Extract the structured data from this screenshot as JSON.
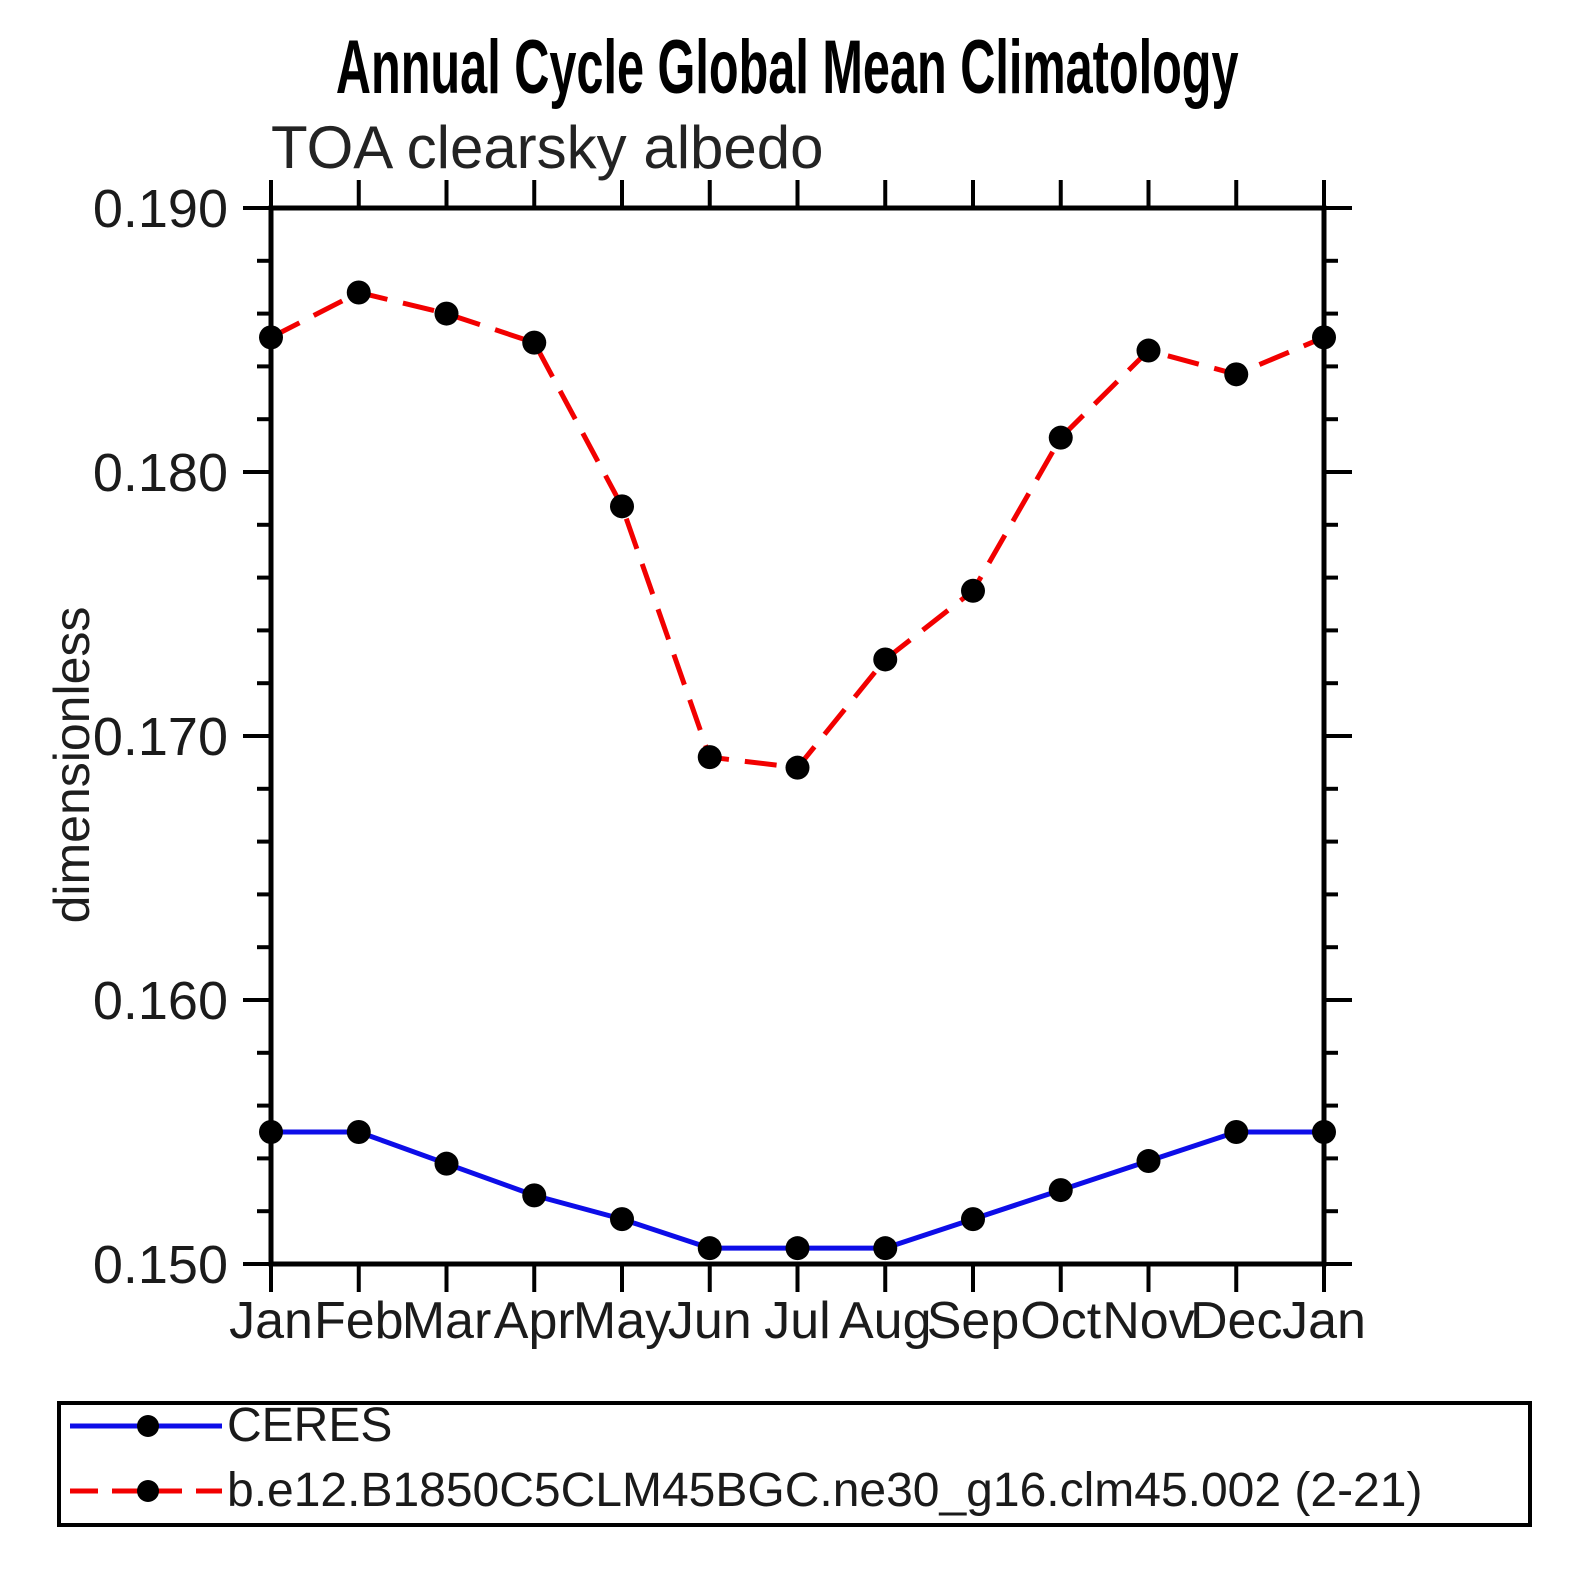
{
  "title": "Annual Cycle Global Mean Climatology",
  "subtitle": "TOA clearsky albedo",
  "y_axis_label": "dimensionless",
  "colors": {
    "ceres_line": "#0d0de8",
    "model_line": "#f20000",
    "marker": "#000000",
    "axis": "#000000",
    "background": "#ffffff"
  },
  "chart_data": {
    "type": "line",
    "categories": [
      "Jan",
      "Feb",
      "Mar",
      "Apr",
      "May",
      "Jun",
      "Jul",
      "Aug",
      "Sep",
      "Oct",
      "Nov",
      "Dec",
      "Jan"
    ],
    "xlabel": "",
    "ylabel": "dimensionless",
    "ylim": [
      0.15,
      0.19
    ],
    "yticks": [
      0.15,
      0.16,
      0.17,
      0.18,
      0.19
    ],
    "ytick_labels": [
      "0.150",
      "0.160",
      "0.170",
      "0.180",
      "0.190"
    ],
    "minor_tick_step": 0.002,
    "grid": false,
    "tick_direction": "out",
    "legend_position": "bottom-left",
    "series": [
      {
        "name": "CERES",
        "color": "#0d0de8",
        "line_style": "solid",
        "marker": "circle",
        "marker_color": "#000000",
        "values": [
          0.155,
          0.155,
          0.1538,
          0.1526,
          0.1517,
          0.1506,
          0.1506,
          0.1506,
          0.1517,
          0.1528,
          0.1539,
          0.155,
          0.155
        ]
      },
      {
        "name": "b.e12.B1850C5CLM45BGC.ne30_g16.clm45.002 (2-21)",
        "color": "#f20000",
        "line_style": "dashed",
        "marker": "circle",
        "marker_color": "#000000",
        "values": [
          0.1851,
          0.1868,
          0.186,
          0.1849,
          0.1787,
          0.1692,
          0.1688,
          0.1729,
          0.1755,
          0.1813,
          0.1846,
          0.1837,
          0.1851
        ]
      }
    ]
  },
  "legend": {
    "entries": [
      {
        "label": "CERES"
      },
      {
        "label": "b.e12.B1850C5CLM45BGC.ne30_g16.clm45.002 (2-21)"
      }
    ]
  }
}
